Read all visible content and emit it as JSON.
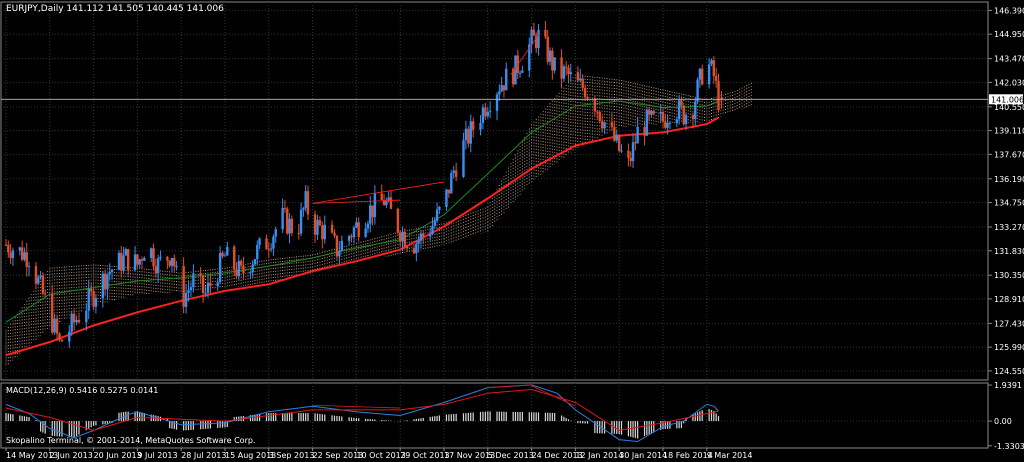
{
  "window": {
    "header": "EURJPY,Daily  141.112 141.505 140.445 141.006",
    "copyright": "Skopalino Terminal, © 2001-2014, MetaQuotes Software Corp."
  },
  "colors": {
    "background": "#000000",
    "grid": "#2a3a45",
    "axis": "#8a8a8a",
    "text": "#ffffff",
    "bull_candle": "#3a8ef0",
    "bear_candle": "#e0502a",
    "ma_fast": "#1e8a1e",
    "ma_slow": "#ff2020",
    "cloud_a": "#f0b080",
    "cloud_b": "#e8e8e8",
    "macd_hist": "#d8d8d8",
    "macd_line": "#2f7fe0",
    "signal_line": "#e01818",
    "price_label_bg": "#ffffff",
    "price_label_text": "#000000"
  },
  "chart_data": [
    {
      "type": "candlestick",
      "symbol": "EURJPY",
      "timeframe": "Daily",
      "ohlc_last": {
        "open": 141.112,
        "high": 141.505,
        "low": 140.445,
        "close": 141.006
      },
      "current_price_label": "141.006",
      "ylim": [
        124.0,
        146.9
      ],
      "y_ticks": [
        "146.390",
        "144.950",
        "143.470",
        "142.030",
        "140.550",
        "139.110",
        "137.670",
        "136.190",
        "134.750",
        "133.270",
        "131.830",
        "130.350",
        "128.910",
        "127.430",
        "125.990",
        "124.550"
      ],
      "x_ticks": [
        "14 May 2013",
        "2 Jun 2013",
        "20 Jun 2013",
        "9 Jul 2013",
        "28 Jul 2013",
        "15 Aug 2013",
        "3 Sep 2013",
        "22 Sep 2013",
        "10 Oct 2013",
        "29 Oct 2013",
        "17 Nov 2013",
        "5 Dec 2013",
        "24 Dec 2013",
        "12 Jan 2014",
        "30 Jan 2014",
        "18 Feb 2014",
        "9 Mar 2014"
      ],
      "close_path": [
        [
          "14 May 2013",
          132.2
        ],
        [
          "24 May 2013",
          131.5
        ],
        [
          "2 Jun 2013",
          128.0
        ],
        [
          "6 Jun 2013",
          126.2
        ],
        [
          "12 Jun 2013",
          127.5
        ],
        [
          "20 Jun 2013",
          129.2
        ],
        [
          "26 Jun 2013",
          130.5
        ],
        [
          "4 Jul 2013",
          131.4
        ],
        [
          "9 Jul 2013",
          131.0
        ],
        [
          "13 Jul 2013",
          132.3
        ],
        [
          "18 Jul 2013",
          131.0
        ],
        [
          "24 Jul 2013",
          131.7
        ],
        [
          "28 Jul 2013",
          128.8
        ],
        [
          "2 Aug 2013",
          130.0
        ],
        [
          "7 Aug 2013",
          129.2
        ],
        [
          "15 Aug 2013",
          131.5
        ],
        [
          "22 Aug 2013",
          130.4
        ],
        [
          "29 Aug 2013",
          131.8
        ],
        [
          "3 Sep 2013",
          132.5
        ],
        [
          "9 Sep 2013",
          133.8
        ],
        [
          "15 Sep 2013",
          133.0
        ],
        [
          "19 Sep 2013",
          134.7
        ],
        [
          "22 Sep 2013",
          133.5
        ],
        [
          "27 Sep 2013",
          133.0
        ],
        [
          "2 Oct 2013",
          131.9
        ],
        [
          "10 Oct 2013",
          133.3
        ],
        [
          "16 Oct 2013",
          134.3
        ],
        [
          "22 Oct 2013",
          134.9
        ],
        [
          "26 Oct 2013",
          133.8
        ],
        [
          "29 Oct 2013",
          133.1
        ],
        [
          "3 Nov 2013",
          132.2
        ],
        [
          "7 Nov 2013",
          132.6
        ],
        [
          "12 Nov 2013",
          133.4
        ],
        [
          "17 Nov 2013",
          134.6
        ],
        [
          "21 Nov 2013",
          136.7
        ],
        [
          "25 Nov 2013",
          138.2
        ],
        [
          "29 Nov 2013",
          139.3
        ],
        [
          "5 Dec 2013",
          140.9
        ],
        [
          "10 Dec 2013",
          141.9
        ],
        [
          "15 Dec 2013",
          142.5
        ],
        [
          "20 Dec 2013",
          143.4
        ],
        [
          "24 Dec 2013",
          144.5
        ],
        [
          "27 Dec 2013",
          144.8
        ],
        [
          "31 Dec 2013",
          143.8
        ],
        [
          "4 Jan 2014",
          142.5
        ],
        [
          "8 Jan 2014",
          142.6
        ],
        [
          "12 Jan 2014",
          141.9
        ],
        [
          "16 Jan 2014",
          141.7
        ],
        [
          "20 Jan 2014",
          140.8
        ],
        [
          "24 Jan 2014",
          139.6
        ],
        [
          "27 Jan 2014",
          138.8
        ],
        [
          "30 Jan 2014",
          137.9
        ],
        [
          "3 Feb 2014",
          137.0
        ],
        [
          "7 Feb 2014",
          139.0
        ],
        [
          "11 Feb 2014",
          139.6
        ],
        [
          "18 Feb 2014",
          139.7
        ],
        [
          "22 Feb 2014",
          140.6
        ],
        [
          "27 Feb 2014",
          140.1
        ],
        [
          "3 Mar 2014",
          140.6
        ],
        [
          "7 Mar 2014",
          142.6
        ],
        [
          "9 Mar 2014",
          143.3
        ],
        [
          "12 Mar 2014",
          142.4
        ],
        [
          "14 Mar 2014",
          141.0
        ]
      ],
      "ma_fast": [
        [
          "14 May 2013",
          127.5
        ],
        [
          "2 Jun 2013",
          129.2
        ],
        [
          "20 Jun 2013",
          129.6
        ],
        [
          "9 Jul 2013",
          130.0
        ],
        [
          "28 Jul 2013",
          130.2
        ],
        [
          "15 Aug 2013",
          130.5
        ],
        [
          "3 Sep 2013",
          130.9
        ],
        [
          "22 Sep 2013",
          131.4
        ],
        [
          "10 Oct 2013",
          132.0
        ],
        [
          "29 Oct 2013",
          132.5
        ],
        [
          "17 Nov 2013",
          134.0
        ],
        [
          "5 Dec 2013",
          136.5
        ],
        [
          "24 Dec 2013",
          139.0
        ],
        [
          "12 Jan 2014",
          140.6
        ],
        [
          "30 Jan 2014",
          140.9
        ],
        [
          "18 Feb 2014",
          140.5
        ],
        [
          "9 Mar 2014",
          140.6
        ],
        [
          "14 Mar 2014",
          140.9
        ]
      ],
      "ma_slow": [
        [
          "14 May 2013",
          125.5
        ],
        [
          "2 Jun 2013",
          126.3
        ],
        [
          "20 Jun 2013",
          127.3
        ],
        [
          "9 Jul 2013",
          128.1
        ],
        [
          "28 Jul 2013",
          128.8
        ],
        [
          "15 Aug 2013",
          129.4
        ],
        [
          "3 Sep 2013",
          129.8
        ],
        [
          "22 Sep 2013",
          130.6
        ],
        [
          "10 Oct 2013",
          131.2
        ],
        [
          "29 Oct 2013",
          131.9
        ],
        [
          "17 Nov 2013",
          133.3
        ],
        [
          "5 Dec 2013",
          135.0
        ],
        [
          "24 Dec 2013",
          136.8
        ],
        [
          "12 Jan 2014",
          138.2
        ],
        [
          "30 Jan 2014",
          138.8
        ],
        [
          "18 Feb 2014",
          139.0
        ],
        [
          "9 Mar 2014",
          139.5
        ],
        [
          "14 Mar 2014",
          139.9
        ]
      ],
      "cloud": {
        "top": [
          [
            "14 May 2013",
            127.0
          ],
          [
            "2 Jun 2013",
            130.8
          ],
          [
            "20 Jun 2013",
            131.0
          ],
          [
            "9 Jul 2013",
            130.8
          ],
          [
            "28 Jul 2013",
            130.5
          ],
          [
            "15 Aug 2013",
            130.8
          ],
          [
            "3 Sep 2013",
            131.3
          ],
          [
            "22 Sep 2013",
            131.6
          ],
          [
            "10 Oct 2013",
            132.3
          ],
          [
            "29 Oct 2013",
            133.0
          ],
          [
            "17 Nov 2013",
            133.5
          ],
          [
            "5 Dec 2013",
            134.5
          ],
          [
            "24 Dec 2013",
            139.5
          ],
          [
            "12 Jan 2014",
            142.5
          ],
          [
            "30 Jan 2014",
            142.2
          ],
          [
            "18 Feb 2014",
            141.6
          ],
          [
            "9 Mar 2014",
            141.0
          ],
          [
            "21 Mar 2014",
            141.5
          ],
          [
            "28 Mar 2014",
            142.0
          ]
        ],
        "bottom": [
          [
            "14 May 2013",
            124.8
          ],
          [
            "2 Jun 2013",
            127.2
          ],
          [
            "20 Jun 2013",
            128.5
          ],
          [
            "9 Jul 2013",
            129.2
          ],
          [
            "28 Jul 2013",
            129.3
          ],
          [
            "15 Aug 2013",
            129.6
          ],
          [
            "3 Sep 2013",
            129.8
          ],
          [
            "22 Sep 2013",
            130.5
          ],
          [
            "10 Oct 2013",
            131.2
          ],
          [
            "29 Oct 2013",
            131.6
          ],
          [
            "17 Nov 2013",
            132.2
          ],
          [
            "5 Dec 2013",
            133.0
          ],
          [
            "24 Dec 2013",
            136.0
          ],
          [
            "12 Jan 2014",
            138.0
          ],
          [
            "30 Jan 2014",
            139.3
          ],
          [
            "18 Feb 2014",
            139.5
          ],
          [
            "9 Mar 2014",
            139.6
          ],
          [
            "21 Mar 2014",
            140.3
          ],
          [
            "28 Mar 2014",
            140.6
          ]
        ]
      },
      "trend_lines": [
        [
          [
            "22 Sep 2013",
            134.7
          ],
          [
            "17 Nov 2013",
            136.0
          ]
        ],
        [
          [
            "22 Sep 2013",
            134.7
          ],
          [
            "29 Oct 2013",
            134.9
          ]
        ],
        [
          [
            "15 Dec 2013",
            142.5
          ],
          [
            "27 Dec 2013",
            144.9
          ]
        ]
      ]
    },
    {
      "type": "macd",
      "label": "MACD(12,26,9) 0.5416 0.5275 0.0141",
      "ylim": [
        -1.45,
        2.05
      ],
      "y_ticks": [
        "1.9391",
        "0.00",
        "-1.3303"
      ],
      "macd_line": [
        [
          "14 May 2013",
          0.9
        ],
        [
          "24 May 2013",
          0.4
        ],
        [
          "2 Jun 2013",
          -0.4
        ],
        [
          "12 Jun 2013",
          -0.9
        ],
        [
          "20 Jun 2013",
          -0.5
        ],
        [
          "4 Jul 2013",
          0.3
        ],
        [
          "9 Jul 2013",
          0.5
        ],
        [
          "28 Jul 2013",
          -0.2
        ],
        [
          "15 Aug 2013",
          -0.1
        ],
        [
          "3 Sep 2013",
          0.5
        ],
        [
          "22 Sep 2013",
          0.8
        ],
        [
          "10 Oct 2013",
          0.5
        ],
        [
          "29 Oct 2013",
          0.3
        ],
        [
          "17 Nov 2013",
          1.0
        ],
        [
          "5 Dec 2013",
          1.8
        ],
        [
          "24 Dec 2013",
          1.95
        ],
        [
          "4 Jan 2014",
          1.5
        ],
        [
          "12 Jan 2014",
          0.6
        ],
        [
          "30 Jan 2014",
          -1.0
        ],
        [
          "7 Feb 2014",
          -1.1
        ],
        [
          "18 Feb 2014",
          -0.3
        ],
        [
          "27 Feb 2014",
          0.0
        ],
        [
          "9 Mar 2014",
          0.9
        ],
        [
          "12 Mar 2014",
          0.8
        ],
        [
          "14 Mar 2014",
          0.55
        ]
      ],
      "signal_line": [
        [
          "14 May 2013",
          0.7
        ],
        [
          "2 Jun 2013",
          0.2
        ],
        [
          "20 Jun 2013",
          -0.5
        ],
        [
          "9 Jul 2013",
          0.2
        ],
        [
          "28 Jul 2013",
          0.1
        ],
        [
          "15 Aug 2013",
          0.0
        ],
        [
          "3 Sep 2013",
          0.3
        ],
        [
          "22 Sep 2013",
          0.6
        ],
        [
          "10 Oct 2013",
          0.6
        ],
        [
          "29 Oct 2013",
          0.6
        ],
        [
          "17 Nov 2013",
          0.9
        ],
        [
          "5 Dec 2013",
          1.5
        ],
        [
          "24 Dec 2013",
          1.7
        ],
        [
          "12 Jan 2014",
          1.0
        ],
        [
          "30 Jan 2014",
          -0.5
        ],
        [
          "18 Feb 2014",
          -0.1
        ],
        [
          "9 Mar 2014",
          0.4
        ],
        [
          "14 Mar 2014",
          0.53
        ]
      ],
      "macd_trend_lines": [
        [
          [
            "22 Sep 2013",
            0.85
          ],
          [
            "29 Oct 2013",
            0.7
          ]
        ],
        [
          [
            "5 Dec 2013",
            1.8
          ],
          [
            "24 Dec 2013",
            1.95
          ]
        ],
        [
          [
            "24 Dec 2013",
            1.9
          ],
          [
            "12 Jan 2014",
            0.8
          ]
        ]
      ]
    }
  ]
}
